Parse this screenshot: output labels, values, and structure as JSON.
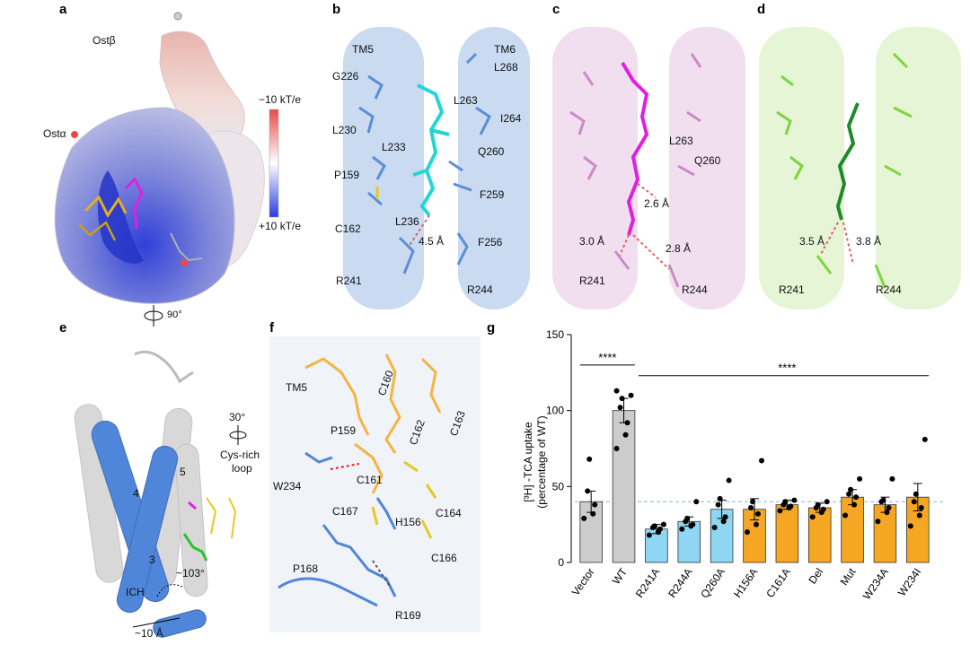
{
  "panel_letters": {
    "a": "a",
    "b": "b",
    "c": "c",
    "d": "d",
    "e": "e",
    "f": "f",
    "g": "g"
  },
  "panel_a": {
    "ost_beta": "Ostβ",
    "ost_alpha": "Ostα",
    "scale_top": "−10 kT/e",
    "scale_bottom": "+10 kT/e",
    "rotation": "90°",
    "colors": {
      "negative": "#e84a4a",
      "positive": "#2a3ce0",
      "neutral": "#ffffff"
    }
  },
  "panel_b": {
    "labels": [
      "TM5",
      "TM6",
      "G226",
      "L268",
      "L263",
      "L230",
      "I264",
      "L233",
      "Q260",
      "P159",
      "F259",
      "L236",
      "C162",
      "4.5 Å",
      "F256",
      "R241",
      "R244"
    ],
    "colors": {
      "helix": "#b8d0ee",
      "sticks": "#5b8ed6",
      "ligand": "#22d6d6"
    }
  },
  "panel_c": {
    "labels": [
      "L263",
      "Q260",
      "2.6 Å",
      "3.0 Å",
      "2.8 Å",
      "R241",
      "R244"
    ],
    "colors": {
      "helix": "#ecd3ea",
      "sticks": "#c98cc6",
      "ligand": "#e020e0"
    }
  },
  "panel_d": {
    "labels": [
      "3.5 Å",
      "3.8 Å",
      "R241",
      "R244"
    ],
    "colors": {
      "helix": "#dff2c9",
      "sticks": "#7ed43e",
      "ligand": "#1f8a2a"
    }
  },
  "panel_e": {
    "rotation": "30°",
    "loop_label_1": "Cys-rich",
    "loop_label_2": "loop",
    "helix_4": "4",
    "helix_5": "5",
    "helix_3": "3",
    "ich": "ICH",
    "angle": "~103°",
    "distance": "~10 Å"
  },
  "panel_f": {
    "labels": [
      "TM5",
      "C160",
      "P159",
      "C162",
      "C163",
      "W234",
      "C161",
      "C167",
      "H156",
      "C164",
      "C166",
      "P168",
      "R169"
    ]
  },
  "chart_data": {
    "type": "bar",
    "categories": [
      "Vector",
      "WT",
      "R241A",
      "R244A",
      "Q260A",
      "H156A",
      "C161A",
      "Del",
      "Mut",
      "W234A",
      "W234I"
    ],
    "values": [
      40,
      100,
      22,
      27,
      35,
      35,
      38,
      36,
      43,
      38,
      43
    ],
    "errors": [
      7,
      8,
      3,
      3,
      6,
      7,
      3,
      3,
      5,
      5,
      9
    ],
    "points": [
      [
        29,
        32,
        38,
        47,
        68
      ],
      [
        75,
        84,
        92,
        102,
        108,
        110,
        113
      ],
      [
        18,
        20,
        22,
        23,
        24,
        25
      ],
      [
        22,
        24,
        25,
        27,
        29,
        40
      ],
      [
        23,
        27,
        30,
        38,
        42,
        54
      ],
      [
        20,
        25,
        32,
        36,
        40,
        67
      ],
      [
        34,
        36,
        37,
        38,
        40,
        41
      ],
      [
        30,
        33,
        35,
        36,
        38,
        40
      ],
      [
        31,
        38,
        43,
        45,
        48,
        55
      ],
      [
        27,
        33,
        36,
        40,
        41,
        55
      ],
      [
        24,
        31,
        36,
        40,
        45,
        81
      ]
    ],
    "colors": [
      "#cccccc",
      "#cccccc",
      "#8fd6f2",
      "#8fd6f2",
      "#8fd6f2",
      "#f5a623",
      "#f5a623",
      "#f5a623",
      "#f5a623",
      "#f5a623",
      "#f5a623"
    ],
    "ylabel_1": "[³H] -TCA uptake",
    "ylabel_2": "(percentage of WT)",
    "ylim": [
      0,
      150
    ],
    "yticks": [
      0,
      50,
      100,
      150
    ],
    "reference_line": 40,
    "sig_1": "****",
    "sig_2": "****"
  }
}
